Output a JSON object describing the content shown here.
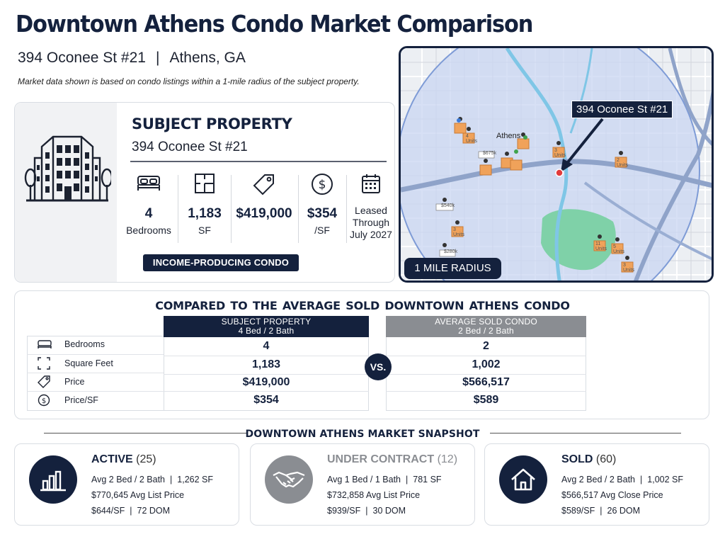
{
  "header": {
    "title": "Downtown Athens Condo Market Comparison",
    "address": "394 Oconee St #21",
    "separator": "|",
    "city": "Athens, GA",
    "note": "Market data shown is based on condo listings within a 1-mile radius of the subject property."
  },
  "subject": {
    "heading": "SUBJECT PROPERTY",
    "address": "394 Oconee St #21",
    "stats": [
      {
        "value": "4",
        "label": "Bedrooms",
        "icon": "bed-icon"
      },
      {
        "value": "1,183",
        "label": "SF",
        "icon": "floorplan-icon"
      },
      {
        "value": "$419,000",
        "label": "",
        "icon": "price-tag-icon"
      },
      {
        "value": "$354",
        "label": "/SF",
        "icon": "dollar-circle-icon"
      },
      {
        "value": "",
        "label": "Leased Through July 2027",
        "icon": "calendar-icon"
      }
    ],
    "leased_lines": [
      "Leased",
      "Through",
      "July 2027"
    ],
    "badge": "INCOME-PRODUCING CONDO"
  },
  "map": {
    "callout": "394 Oconee St #21",
    "radius_label": "1 MILE RADIUS",
    "center_label": "Athens",
    "pin_labels": [
      "4 Units",
      "3 Units",
      "2 Units",
      "3 Units",
      "11 Units",
      "5 Units",
      "3 Units"
    ],
    "price_labels": [
      "$540k",
      "$280k",
      "$675k"
    ],
    "colors": {
      "radius_fill": "#c9d6f2",
      "park": "#7fd1a8",
      "river": "#7fc6e6",
      "pin": "#f0a25a",
      "frame": "#14213d"
    }
  },
  "comparison": {
    "title": "COMPARED TO THE AVERAGE  SOLD DOWNTOWN ATHENS CONDO",
    "subject_head": [
      "SUBJECT PROPERTY",
      "4 Bed / 2 Bath"
    ],
    "average_head": [
      "AVERAGE SOLD CONDO",
      "2 Bed / 2 Bath"
    ],
    "vs_label": "VS.",
    "rows": [
      {
        "label": "Bedrooms",
        "icon": "bed-icon",
        "subject": "4",
        "average": "2"
      },
      {
        "label": "Square Feet",
        "icon": "square-corners-icon",
        "subject": "1,183",
        "average": "1,002"
      },
      {
        "label": "Price",
        "icon": "price-tag-icon",
        "subject": "$419,000",
        "average": "$566,517"
      },
      {
        "label": "Price/SF",
        "icon": "dollar-circle-icon",
        "subject": "$354",
        "average": "$589"
      }
    ]
  },
  "snapshot": {
    "title": "DOWNTOWN ATHENS MARKET SNAPSHOT",
    "cards": [
      {
        "status": "ACTIVE",
        "count": "(25)",
        "icon": "bar-chart-icon",
        "line1": [
          "Avg 2 Bed / 2 Bath",
          "1,262 SF"
        ],
        "line2": "$770,645 Avg List Price",
        "line3": [
          "$644/SF",
          "72 DOM"
        ]
      },
      {
        "status": "UNDER CONTRACT",
        "count": "(12)",
        "icon": "handshake-icon",
        "line1": [
          "Avg 1 Bed / 1 Bath",
          "781 SF"
        ],
        "line2": "$732,858 Avg List Price",
        "line3": [
          "$939/SF",
          "30 DOM"
        ]
      },
      {
        "status": "SOLD",
        "count": "(60)",
        "icon": "house-icon",
        "line1": [
          "Avg 2 Bed / 2 Bath",
          "1,002 SF"
        ],
        "line2": "$566,517 Avg Close Price",
        "line3": [
          "$589/SF",
          "26 DOM"
        ]
      }
    ],
    "separator": "|"
  },
  "colors": {
    "navy": "#14213d",
    "gray": "#8a8d92",
    "border": "#d9dde3"
  }
}
